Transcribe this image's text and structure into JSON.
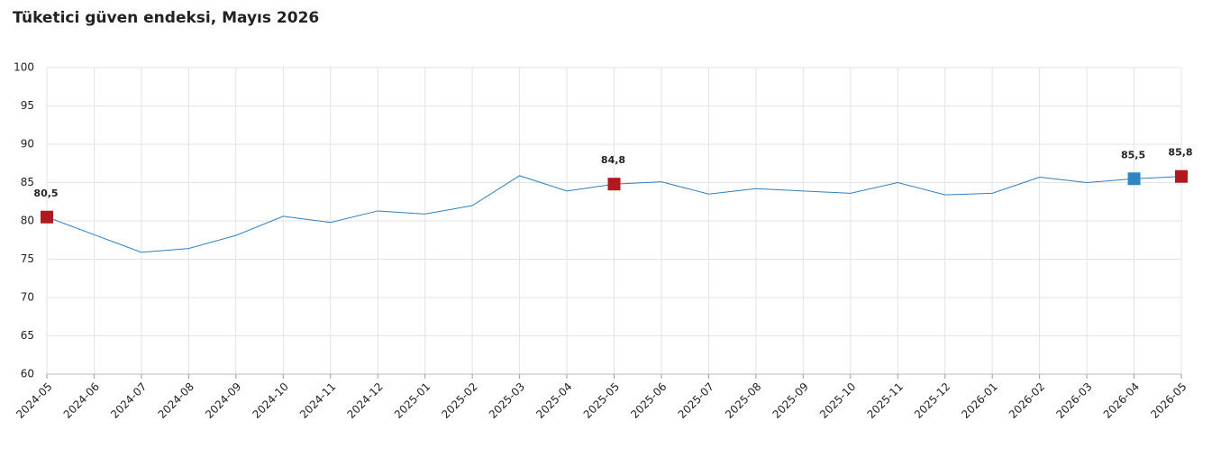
{
  "chart_data": {
    "type": "line",
    "title": "Tüketici güven endeksi, Mayıs 2026",
    "categories": [
      "2024-05",
      "2024-06",
      "2024-07",
      "2024-08",
      "2024-09",
      "2024-10",
      "2024-11",
      "2024-12",
      "2025-01",
      "2025-02",
      "2025-03",
      "2025-04",
      "2025-05",
      "2025-06",
      "2025-07",
      "2025-08",
      "2025-09",
      "2025-10",
      "2025-11",
      "2025-12",
      "2026-01",
      "2026-02",
      "2026-03",
      "2026-04",
      "2026-05"
    ],
    "values": [
      80.5,
      78.2,
      75.9,
      76.4,
      78.1,
      80.6,
      79.8,
      81.3,
      80.9,
      82.0,
      85.9,
      83.9,
      84.8,
      85.1,
      83.5,
      84.2,
      83.9,
      83.6,
      85.0,
      83.4,
      83.6,
      85.7,
      85.0,
      85.5,
      85.8
    ],
    "value_labels": [
      "80,5",
      null,
      null,
      null,
      null,
      null,
      null,
      null,
      null,
      null,
      null,
      null,
      "84,8",
      null,
      null,
      null,
      null,
      null,
      null,
      null,
      null,
      null,
      null,
      "85,5",
      "85,8"
    ],
    "marker_colors": [
      "#b0191e",
      null,
      null,
      null,
      null,
      null,
      null,
      null,
      null,
      null,
      null,
      null,
      "#b0191e",
      null,
      null,
      null,
      null,
      null,
      null,
      null,
      null,
      null,
      null,
      "#2e86c1",
      "#b0191e"
    ],
    "color": "#2f7fc1",
    "ylim": [
      60,
      100
    ],
    "yticks": [
      60,
      65,
      70,
      75,
      80,
      85,
      90,
      95,
      100
    ],
    "grid": true
  }
}
